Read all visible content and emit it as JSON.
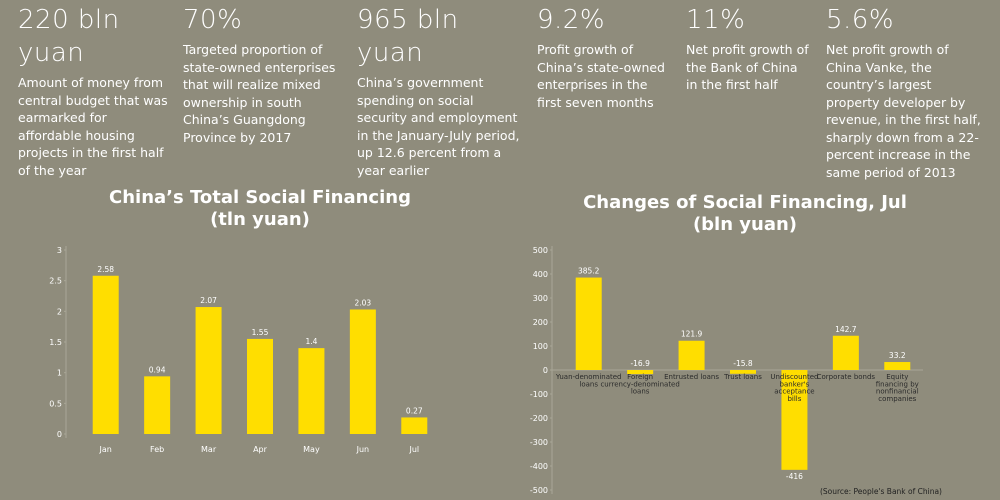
{
  "stats": [
    {
      "figure": "220 bln yuan",
      "text": "Amount of money from central budget that was earmarked for affordable housing projects in the first half of the year"
    },
    {
      "figure": "70%",
      "text": "Targeted proportion of state-owned enterprises that will realize mixed ownership in south China’s Guangdong Province by 2017"
    },
    {
      "figure": "965 bln yuan",
      "text": "China’s government spending on social security and employment in the January-July period, up 12.6 percent from a year earlier"
    },
    {
      "figure": "9.2%",
      "text": "Profit growth of China’s state-owned enterprises in the first seven months"
    },
    {
      "figure": "11%",
      "text": "Net profit growth of the Bank of China in the first half"
    },
    {
      "figure": "5.6%",
      "text": "Net profit growth of China Vanke, the country’s largest property developer by revenue, in the first half, sharply down from a 22-percent increase in the same period of 2013"
    }
  ],
  "chart_data": [
    {
      "type": "bar",
      "title": "China’s Total Social Financing",
      "subtitle": "(tln yuan)",
      "categories": [
        "Jan",
        "Feb",
        "Mar",
        "Apr",
        "May",
        "Jun",
        "Jul"
      ],
      "values": [
        2.58,
        0.94,
        2.07,
        1.55,
        1.4,
        2.03,
        0.27
      ],
      "color": "#ffde00",
      "ylim": [
        0,
        3
      ],
      "yticks": [
        0,
        0.5,
        1,
        1.5,
        2,
        2.5,
        3
      ]
    },
    {
      "type": "bar",
      "title": "Changes of Social Financing, Jul",
      "subtitle": "(bln yuan)",
      "categories": [
        "Yuan-denominated loans",
        "Foreign currency-denominated loans",
        "Entrusted loans",
        "Trust loans",
        "Undiscounted banker's acceptance bills",
        "Corporate bonds",
        "Equity financing by nonfinancial companies"
      ],
      "values": [
        385.2,
        -16.9,
        121.9,
        -15.8,
        -416,
        142.7,
        33.2
      ],
      "color": "#ffde00",
      "ylim": [
        -500,
        500
      ],
      "yticks": [
        -500,
        -400,
        -300,
        -200,
        -100,
        0,
        100,
        200,
        300,
        400,
        500
      ],
      "source": "(Source: People's Bank of China)"
    }
  ]
}
